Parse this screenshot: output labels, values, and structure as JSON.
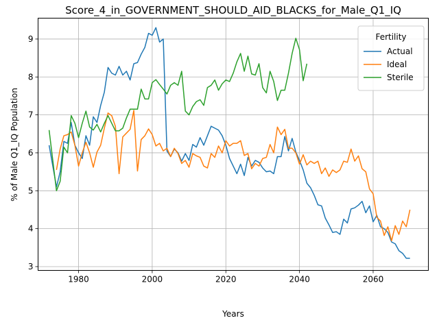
{
  "chart_data": {
    "type": "line",
    "title": "Score_4_in_GOVERNMENT_SHOULD_AID_BLACKS_for_Male_Q1_IQ",
    "xlabel": "Years",
    "ylabel": "% of Male Q1_IQ Population",
    "xlim": [
      1969,
      2075
    ],
    "ylim": [
      2.9,
      9.55
    ],
    "xticks": [
      1980,
      2000,
      2020,
      2040,
      2060
    ],
    "yticks": [
      3,
      4,
      5,
      6,
      7,
      8,
      9
    ],
    "grid": true,
    "legend": {
      "title": "Fertility",
      "placement": "top-right"
    },
    "series": [
      {
        "name": "Actual",
        "color": "#1f77b4",
        "x": [
          1972,
          1974,
          1975,
          1976,
          1977,
          1978,
          1979,
          1980,
          1981,
          1982,
          1983,
          1984,
          1985,
          1986,
          1987,
          1988,
          1989,
          1990,
          1991,
          1992,
          1993,
          1994,
          1995,
          1996,
          1997,
          1998,
          1999,
          2000,
          2001,
          2002,
          2003,
          2004,
          2005,
          2006,
          2007,
          2008,
          2009,
          2010,
          2011,
          2012,
          2013,
          2014,
          2015,
          2016,
          2017,
          2018,
          2019,
          2020,
          2021,
          2022,
          2023,
          2024,
          2025,
          2026,
          2027,
          2028,
          2029,
          2030,
          2031,
          2032,
          2033,
          2034,
          2035,
          2036,
          2037,
          2038,
          2039,
          2040,
          2041,
          2042,
          2043,
          2044,
          2045,
          2046,
          2047,
          2048,
          2049,
          2050,
          2051,
          2052,
          2053,
          2054,
          2055,
          2056,
          2057,
          2058,
          2059,
          2060,
          2061,
          2062,
          2063,
          2064,
          2065,
          2066,
          2067,
          2068,
          2069,
          2070
        ],
        "y": [
          6.2,
          5.1,
          5.5,
          6.3,
          6.25,
          6.8,
          6.2,
          6.0,
          5.85,
          6.45,
          6.2,
          6.95,
          6.8,
          7.25,
          7.6,
          8.25,
          8.1,
          8.05,
          8.28,
          8.05,
          8.15,
          7.92,
          8.35,
          8.38,
          8.6,
          8.78,
          9.15,
          9.1,
          9.3,
          8.92,
          9.0,
          6.05,
          5.9,
          6.1,
          6.0,
          5.78,
          5.98,
          5.8,
          6.22,
          6.15,
          6.4,
          6.2,
          6.45,
          6.7,
          6.65,
          6.6,
          6.45,
          6.2,
          5.85,
          5.65,
          5.45,
          5.7,
          5.4,
          5.88,
          5.65,
          5.8,
          5.75,
          5.6,
          5.5,
          5.52,
          5.45,
          5.9,
          5.9,
          6.43,
          6.05,
          6.38,
          6.02,
          5.8,
          5.55,
          5.2,
          5.08,
          4.88,
          4.63,
          4.6,
          4.28,
          4.1,
          3.9,
          3.92,
          3.85,
          4.25,
          4.15,
          4.52,
          4.55,
          4.62,
          4.72,
          4.42,
          4.6,
          4.18,
          4.35,
          4.05,
          4.0,
          3.9,
          3.65,
          3.6,
          3.42,
          3.35,
          3.22,
          3.22
        ]
      },
      {
        "name": "Ideal",
        "color": "#ff7f0e",
        "x": [
          1974,
          1975,
          1976,
          1977,
          1978,
          1979,
          1980,
          1981,
          1982,
          1983,
          1984,
          1985,
          1986,
          1987,
          1988,
          1989,
          1990,
          1991,
          1992,
          1993,
          1994,
          1995,
          1996,
          1997,
          1998,
          1999,
          2000,
          2001,
          2002,
          2003,
          2004,
          2005,
          2006,
          2007,
          2008,
          2009,
          2010,
          2011,
          2012,
          2013,
          2014,
          2015,
          2016,
          2017,
          2018,
          2019,
          2020,
          2021,
          2022,
          2023,
          2024,
          2025,
          2026,
          2027,
          2028,
          2029,
          2030,
          2031,
          2032,
          2033,
          2034,
          2035,
          2036,
          2037,
          2038,
          2039,
          2040,
          2041,
          2042,
          2043,
          2044,
          2045,
          2046,
          2047,
          2048,
          2049,
          2050,
          2051,
          2052,
          2053,
          2054,
          2055,
          2056,
          2057,
          2058,
          2059,
          2060,
          2061,
          2062,
          2063,
          2064,
          2065,
          2066,
          2067,
          2068,
          2069,
          2070
        ],
        "y": [
          5.55,
          6.1,
          6.45,
          6.48,
          6.55,
          6.2,
          5.65,
          6.0,
          6.28,
          6.0,
          5.62,
          6.02,
          6.2,
          6.65,
          7.05,
          6.98,
          6.7,
          5.45,
          6.42,
          6.52,
          6.62,
          7.12,
          5.52,
          6.35,
          6.45,
          6.63,
          6.48,
          6.18,
          6.25,
          6.05,
          6.12,
          5.9,
          6.12,
          5.98,
          5.72,
          5.8,
          5.62,
          5.98,
          5.92,
          5.88,
          5.65,
          5.6,
          5.98,
          5.88,
          6.18,
          6.0,
          6.32,
          6.18,
          6.25,
          6.25,
          6.32,
          5.93,
          5.98,
          5.58,
          5.72,
          5.65,
          5.85,
          5.88,
          6.22,
          6.0,
          6.68,
          6.48,
          6.62,
          6.12,
          6.12,
          6.0,
          5.7,
          5.95,
          5.68,
          5.78,
          5.72,
          5.78,
          5.45,
          5.6,
          5.38,
          5.55,
          5.48,
          5.55,
          5.78,
          5.75,
          6.1,
          5.78,
          5.92,
          5.58,
          5.5,
          5.05,
          4.92,
          4.3,
          4.2,
          3.82,
          4.05,
          3.68,
          4.08,
          3.85,
          4.2,
          4.05,
          4.5
        ]
      },
      {
        "name": "Sterile",
        "color": "#2ca02c",
        "x": [
          1972,
          1974,
          1975,
          1976,
          1977,
          1978,
          1979,
          1980,
          1981,
          1982,
          1983,
          1984,
          1985,
          1986,
          1987,
          1988,
          1989,
          1990,
          1991,
          1992,
          1993,
          1994,
          1995,
          1996,
          1997,
          1998,
          1999,
          2000,
          2001,
          2002,
          2003,
          2004,
          2005,
          2006,
          2007,
          2008,
          2009,
          2010,
          2011,
          2012,
          2013,
          2014,
          2015,
          2016,
          2017,
          2018,
          2019,
          2020,
          2021,
          2022,
          2023,
          2024,
          2025,
          2026,
          2027,
          2028,
          2029,
          2030,
          2031,
          2032,
          2033,
          2034,
          2035,
          2036,
          2037,
          2038,
          2039,
          2040,
          2041,
          2042
        ],
        "y": [
          6.6,
          5.0,
          5.25,
          6.15,
          6.0,
          6.98,
          6.78,
          6.4,
          6.78,
          7.1,
          6.68,
          6.6,
          6.75,
          6.55,
          6.78,
          6.98,
          6.78,
          6.58,
          6.58,
          6.65,
          6.92,
          7.15,
          7.15,
          7.15,
          7.68,
          7.42,
          7.42,
          7.85,
          7.93,
          7.8,
          7.68,
          7.55,
          7.78,
          7.85,
          7.78,
          8.15,
          7.1,
          7.0,
          7.22,
          7.35,
          7.4,
          7.25,
          7.72,
          7.78,
          7.92,
          7.65,
          7.82,
          7.92,
          7.88,
          8.1,
          8.4,
          8.62,
          8.15,
          8.55,
          8.08,
          8.05,
          8.35,
          7.72,
          7.58,
          8.15,
          7.88,
          7.38,
          7.65,
          7.65,
          8.1,
          8.62,
          9.02,
          8.72,
          7.9,
          8.35
        ]
      }
    ]
  }
}
